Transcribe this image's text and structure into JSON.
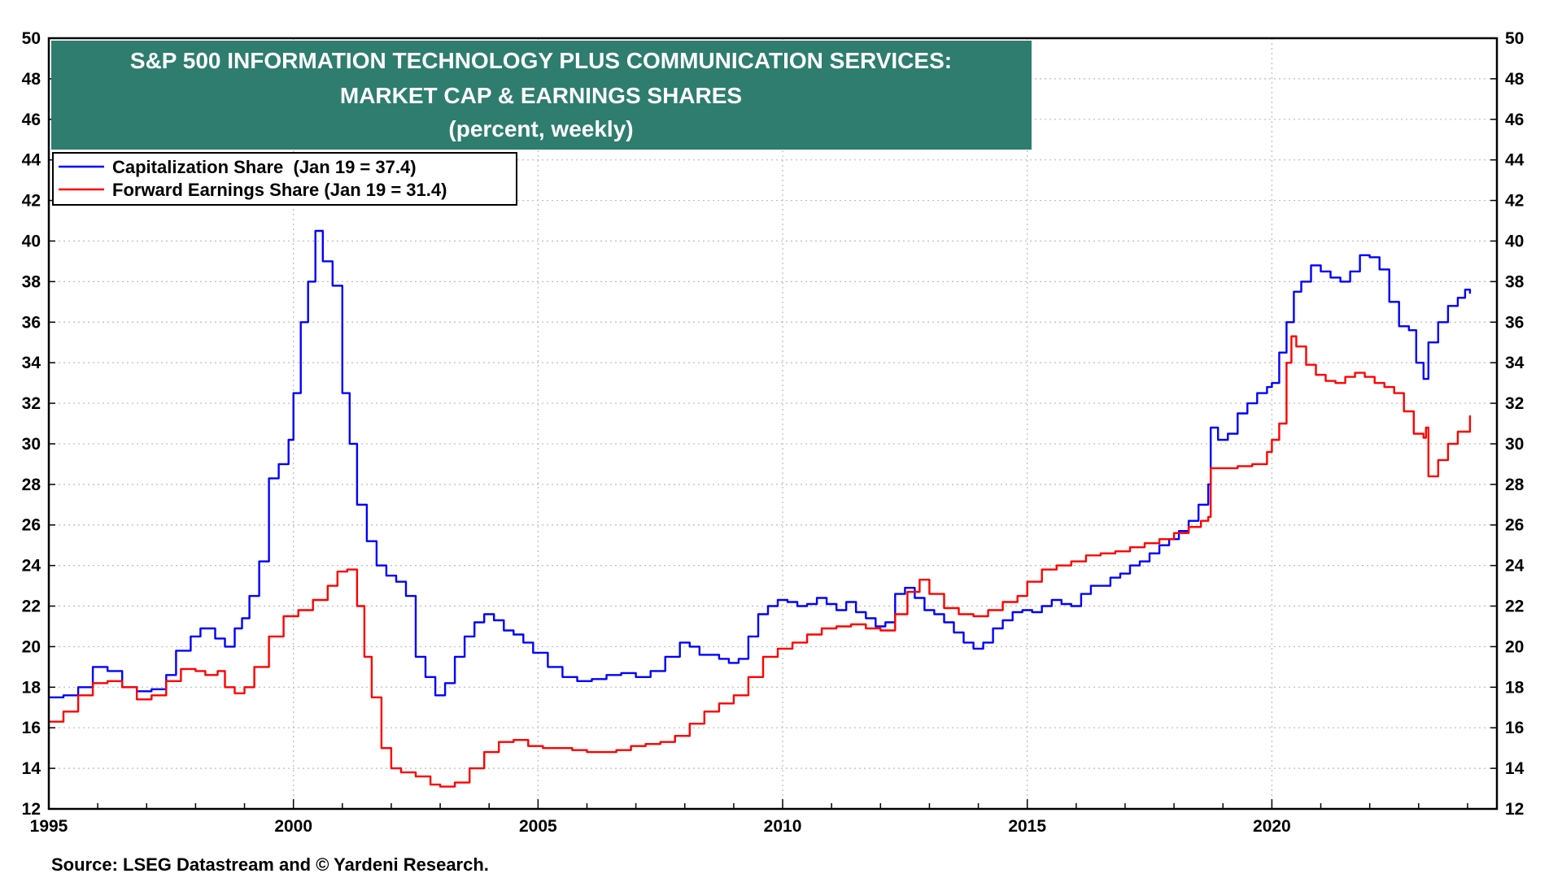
{
  "chart_data": {
    "type": "line",
    "title_lines": [
      "S&P 500 INFORMATION TECHNOLOGY PLUS COMMUNICATION SERVICES:",
      "MARKET CAP & EARNINGS SHARES",
      "(percent, weekly)"
    ],
    "source": "Source: LSEG Datastream and © Yardeni Research.",
    "xlim": [
      1995,
      2024.6
    ],
    "ylim": [
      12,
      50
    ],
    "x_ticks": [
      1995,
      2000,
      2005,
      2010,
      2015,
      2020
    ],
    "y_ticks": [
      12,
      14,
      16,
      18,
      20,
      22,
      24,
      26,
      28,
      30,
      32,
      34,
      36,
      38,
      40,
      42,
      44,
      46,
      48,
      50
    ],
    "grid": true,
    "legend_position": "top-left",
    "colors": {
      "title_bg": "#2e7d6e",
      "cap": "#0000ff",
      "earn": "#ff0000",
      "grid": "#bbbbbb"
    },
    "series": [
      {
        "name": "Capitalization Share  (Jan 19 = 37.4)",
        "color": "#0000ff",
        "x": [
          1995.0,
          1995.3,
          1995.6,
          1995.9,
          1996.2,
          1996.5,
          1996.8,
          1997.1,
          1997.4,
          1997.6,
          1997.9,
          1998.1,
          1998.4,
          1998.6,
          1998.8,
          1998.95,
          1999.1,
          1999.3,
          1999.5,
          1999.7,
          1999.9,
          2000.0,
          2000.15,
          2000.3,
          2000.45,
          2000.6,
          2000.8,
          2001.0,
          2001.15,
          2001.3,
          2001.5,
          2001.7,
          2001.9,
          2002.1,
          2002.3,
          2002.5,
          2002.7,
          2002.9,
          2003.1,
          2003.3,
          2003.5,
          2003.7,
          2003.9,
          2004.1,
          2004.3,
          2004.5,
          2004.7,
          2004.9,
          2005.2,
          2005.5,
          2005.8,
          2006.1,
          2006.4,
          2006.7,
          2007.0,
          2007.3,
          2007.6,
          2007.9,
          2008.1,
          2008.3,
          2008.5,
          2008.7,
          2008.9,
          2009.1,
          2009.3,
          2009.5,
          2009.7,
          2009.9,
          2010.1,
          2010.3,
          2010.5,
          2010.7,
          2010.9,
          2011.1,
          2011.3,
          2011.5,
          2011.7,
          2011.9,
          2012.1,
          2012.3,
          2012.5,
          2012.7,
          2012.9,
          2013.1,
          2013.3,
          2013.5,
          2013.7,
          2013.9,
          2014.1,
          2014.3,
          2014.5,
          2014.7,
          2014.9,
          2015.1,
          2015.3,
          2015.5,
          2015.7,
          2015.9,
          2016.1,
          2016.3,
          2016.5,
          2016.7,
          2016.9,
          2017.1,
          2017.3,
          2017.5,
          2017.7,
          2017.9,
          2018.1,
          2018.3,
          2018.5,
          2018.7,
          2018.75,
          2018.9,
          2019.1,
          2019.3,
          2019.5,
          2019.7,
          2019.9,
          2020.0,
          2020.15,
          2020.3,
          2020.45,
          2020.6,
          2020.8,
          2021.0,
          2021.2,
          2021.4,
          2021.6,
          2021.8,
          2022.0,
          2022.2,
          2022.4,
          2022.6,
          2022.8,
          2022.95,
          2023.1,
          2023.2,
          2023.4,
          2023.6,
          2023.8,
          2023.95,
          2024.05
        ],
        "values": [
          17.5,
          17.6,
          18.0,
          19.0,
          18.8,
          18.0,
          17.8,
          17.9,
          18.6,
          19.8,
          20.5,
          20.9,
          20.4,
          20.0,
          20.9,
          21.4,
          22.5,
          24.2,
          28.3,
          29.0,
          30.2,
          32.5,
          36.0,
          38.0,
          40.5,
          39.0,
          37.8,
          32.5,
          30.0,
          27.0,
          25.2,
          24.0,
          23.5,
          23.2,
          22.5,
          19.5,
          18.5,
          17.6,
          18.2,
          19.5,
          20.5,
          21.2,
          21.6,
          21.3,
          20.8,
          20.6,
          20.2,
          19.7,
          19.0,
          18.5,
          18.3,
          18.4,
          18.6,
          18.7,
          18.5,
          18.8,
          19.5,
          20.2,
          20.0,
          19.6,
          19.6,
          19.4,
          19.2,
          19.4,
          20.5,
          21.6,
          22.0,
          22.3,
          22.2,
          22.0,
          22.1,
          22.4,
          22.1,
          21.8,
          22.2,
          21.7,
          21.4,
          21.0,
          21.2,
          22.6,
          22.9,
          22.4,
          21.8,
          21.6,
          21.2,
          20.7,
          20.2,
          19.9,
          20.2,
          20.9,
          21.3,
          21.7,
          21.8,
          21.7,
          22.0,
          22.3,
          22.1,
          22.0,
          22.6,
          23.0,
          23.0,
          23.4,
          23.6,
          24.0,
          24.2,
          24.6,
          25.0,
          25.3,
          25.7,
          26.2,
          27.0,
          28.0,
          30.8,
          30.2,
          30.5,
          31.5,
          32.0,
          32.5,
          32.8,
          33.0,
          34.5,
          36.0,
          37.5,
          38.0,
          38.8,
          38.5,
          38.2,
          38.0,
          38.5,
          39.3,
          39.2,
          38.6,
          37.0,
          35.8,
          35.6,
          34.0,
          33.2,
          35.0,
          36.0,
          36.8,
          37.2,
          37.6,
          37.4
        ]
      },
      {
        "name": "Forward Earnings Share (Jan 19 = 31.4)",
        "color": "#ff0000",
        "x": [
          1995.0,
          1995.3,
          1995.6,
          1995.9,
          1996.2,
          1996.5,
          1996.8,
          1997.1,
          1997.4,
          1997.7,
          1998.0,
          1998.2,
          1998.45,
          1998.6,
          1998.8,
          1999.0,
          1999.2,
          1999.5,
          1999.8,
          2000.1,
          2000.4,
          2000.7,
          2000.9,
          2001.1,
          2001.3,
          2001.45,
          2001.6,
          2001.8,
          2002.0,
          2002.2,
          2002.5,
          2002.8,
          2003.0,
          2003.3,
          2003.6,
          2003.9,
          2004.2,
          2004.5,
          2004.8,
          2005.1,
          2005.4,
          2005.7,
          2006.0,
          2006.3,
          2006.6,
          2006.9,
          2007.2,
          2007.5,
          2007.8,
          2008.1,
          2008.4,
          2008.7,
          2009.0,
          2009.3,
          2009.6,
          2009.9,
          2010.2,
          2010.5,
          2010.8,
          2011.1,
          2011.4,
          2011.7,
          2012.0,
          2012.3,
          2012.55,
          2012.8,
          2013.0,
          2013.3,
          2013.6,
          2013.9,
          2014.2,
          2014.5,
          2014.8,
          2015.0,
          2015.3,
          2015.6,
          2015.9,
          2016.2,
          2016.5,
          2016.8,
          2017.1,
          2017.4,
          2017.7,
          2018.0,
          2018.3,
          2018.55,
          2018.7,
          2018.75,
          2019.0,
          2019.3,
          2019.6,
          2019.9,
          2020.0,
          2020.15,
          2020.3,
          2020.4,
          2020.5,
          2020.7,
          2020.9,
          2021.1,
          2021.3,
          2021.5,
          2021.7,
          2021.9,
          2022.1,
          2022.3,
          2022.5,
          2022.7,
          2022.9,
          2023.1,
          2023.15,
          2023.2,
          2023.4,
          2023.6,
          2023.8,
          2024.05
        ],
        "values": [
          16.3,
          16.8,
          17.6,
          18.2,
          18.3,
          18.0,
          17.4,
          17.6,
          18.3,
          18.9,
          18.8,
          18.6,
          18.8,
          18.0,
          17.7,
          18.0,
          19.0,
          20.5,
          21.5,
          21.8,
          22.3,
          23.0,
          23.7,
          23.8,
          22.0,
          19.5,
          17.5,
          15.0,
          14.0,
          13.8,
          13.6,
          13.2,
          13.1,
          13.3,
          14.0,
          14.8,
          15.3,
          15.4,
          15.1,
          15.0,
          15.0,
          14.9,
          14.8,
          14.8,
          14.9,
          15.1,
          15.2,
          15.3,
          15.6,
          16.2,
          16.8,
          17.2,
          17.6,
          18.5,
          19.5,
          19.9,
          20.2,
          20.6,
          20.9,
          21.0,
          21.1,
          20.9,
          20.8,
          21.6,
          22.7,
          23.3,
          22.6,
          21.9,
          21.6,
          21.5,
          21.8,
          22.2,
          22.5,
          23.2,
          23.8,
          24.0,
          24.2,
          24.5,
          24.6,
          24.7,
          24.9,
          25.1,
          25.3,
          25.6,
          25.9,
          26.2,
          26.4,
          28.8,
          28.8,
          28.9,
          29.0,
          29.6,
          30.2,
          31.0,
          34.0,
          35.3,
          34.8,
          33.9,
          33.4,
          33.1,
          33.0,
          33.3,
          33.5,
          33.3,
          33.0,
          32.8,
          32.5,
          31.6,
          30.5,
          30.3,
          30.8,
          28.4,
          29.2,
          30.0,
          30.6,
          31.4
        ]
      }
    ]
  }
}
